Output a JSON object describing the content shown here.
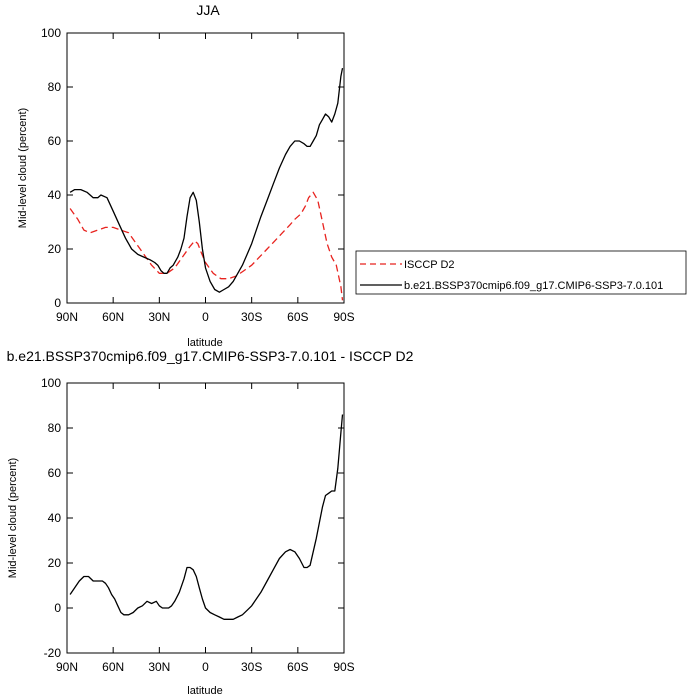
{
  "chart_data": [
    {
      "type": "line",
      "title": "JJA",
      "xlabel": "latitude",
      "ylabel": "Mid-level cloud (percent)",
      "xlim": [
        90,
        -90
      ],
      "xticks": [
        90,
        60,
        30,
        0,
        -30,
        -60,
        -90
      ],
      "xtick_labels": [
        "90N",
        "60N",
        "30N",
        "0",
        "30S",
        "60S",
        "90S"
      ],
      "ylim": [
        0,
        100
      ],
      "yticks": [
        0,
        20,
        40,
        60,
        80,
        100
      ],
      "ytick_labels": [
        "0",
        "20",
        "40",
        "60",
        "80",
        "100"
      ],
      "legend_position": "right",
      "grid": false,
      "series": [
        {
          "name": "ISCCP D2",
          "color": "#e8231f",
          "style": "dashed",
          "x": [
            88,
            83,
            79,
            75,
            70,
            65,
            60,
            55,
            50,
            45,
            40,
            35,
            30,
            25,
            20,
            15,
            10,
            7,
            5,
            3,
            0,
            -5,
            -10,
            -15,
            -20,
            -25,
            -30,
            -35,
            -40,
            -45,
            -50,
            -55,
            -58,
            -62,
            -65,
            -67,
            -70,
            -73,
            -76,
            -79,
            -82,
            -85,
            -88,
            -89
          ],
          "y": [
            35,
            31,
            27,
            26,
            27,
            28,
            28,
            27,
            26,
            22,
            18,
            14,
            11,
            11,
            13,
            17,
            21,
            23,
            22,
            19,
            15,
            11,
            9,
            9,
            10,
            12,
            14,
            17,
            20,
            23,
            26,
            29,
            31,
            33,
            36,
            39,
            41,
            38,
            30,
            22,
            17,
            14,
            6,
            1
          ]
        },
        {
          "name": "b.e21.BSSP370cmip6.f09_g17.CMIP6-SSP3-7.0.101",
          "color": "#000000",
          "style": "solid",
          "x": [
            88,
            85,
            81,
            77,
            73,
            70,
            68,
            64,
            60,
            56,
            52,
            48,
            44,
            40,
            36,
            33,
            31,
            29,
            27,
            25,
            23,
            21,
            18,
            16,
            14,
            12,
            10,
            8,
            6,
            4,
            2,
            0,
            -3,
            -6,
            -9,
            -12,
            -15,
            -18,
            -21,
            -24,
            -27,
            -30,
            -33,
            -36,
            -40,
            -44,
            -48,
            -52,
            -55,
            -58,
            -61,
            -64,
            -66,
            -68,
            -70,
            -72,
            -74,
            -76,
            -78,
            -80,
            -82,
            -84,
            -86,
            -88,
            -89
          ],
          "y": [
            41,
            42,
            42,
            41,
            39,
            39,
            40,
            39,
            34,
            29,
            24,
            20,
            18,
            17,
            16,
            15,
            14,
            12,
            11,
            11,
            13,
            14,
            17,
            20,
            24,
            32,
            39,
            41,
            38,
            30,
            20,
            13,
            8,
            5,
            4,
            5,
            6,
            8,
            11,
            14,
            18,
            22,
            27,
            32,
            38,
            44,
            50,
            55,
            58,
            60,
            60,
            59,
            58,
            58,
            60,
            62,
            66,
            68,
            70,
            69,
            67,
            70,
            74,
            84,
            87
          ]
        }
      ]
    },
    {
      "type": "line",
      "title": "b.e21.BSSP370cmip6.f09_g17.CMIP6-SSP3-7.0.101 - ISCCP D2",
      "xlabel": "latitude",
      "ylabel": "Mid-level cloud (percent)",
      "xlim": [
        90,
        -90
      ],
      "xticks": [
        90,
        60,
        30,
        0,
        -30,
        -60,
        -90
      ],
      "xtick_labels": [
        "90N",
        "60N",
        "30N",
        "0",
        "30S",
        "60S",
        "90S"
      ],
      "ylim": [
        -20,
        100
      ],
      "yticks": [
        -20,
        0,
        20,
        40,
        60,
        80,
        100
      ],
      "ytick_labels": [
        "-20",
        "0",
        "20",
        "40",
        "60",
        "80",
        "100"
      ],
      "grid": false,
      "series": [
        {
          "color": "#000000",
          "style": "solid",
          "x": [
            88,
            85,
            82,
            79,
            76,
            73,
            70,
            67,
            65,
            63,
            61,
            59,
            57,
            55,
            53,
            50,
            47,
            44,
            41,
            38,
            35,
            32,
            30,
            28,
            26,
            24,
            22,
            20,
            17,
            14,
            12,
            10,
            8,
            6,
            4,
            2,
            0,
            -3,
            -6,
            -9,
            -12,
            -15,
            -18,
            -21,
            -24,
            -27,
            -30,
            -33,
            -36,
            -40,
            -44,
            -48,
            -52,
            -55,
            -58,
            -61,
            -64,
            -66,
            -68,
            -70,
            -72,
            -74,
            -76,
            -78,
            -80,
            -82,
            -84,
            -86,
            -88,
            -89
          ],
          "y": [
            6,
            9,
            12,
            14,
            14,
            12,
            12,
            12,
            11,
            9,
            6,
            4,
            1,
            -2,
            -3,
            -3,
            -2,
            0,
            1,
            3,
            2,
            3,
            1,
            0,
            0,
            0,
            1,
            3,
            7,
            13,
            18,
            18,
            17,
            14,
            9,
            4,
            0,
            -2,
            -3,
            -4,
            -5,
            -5,
            -5,
            -4,
            -3,
            -1,
            1,
            4,
            7,
            12,
            17,
            22,
            25,
            26,
            25,
            22,
            18,
            18,
            19,
            25,
            31,
            38,
            45,
            50,
            51,
            52,
            52,
            62,
            78,
            86
          ]
        }
      ]
    }
  ]
}
